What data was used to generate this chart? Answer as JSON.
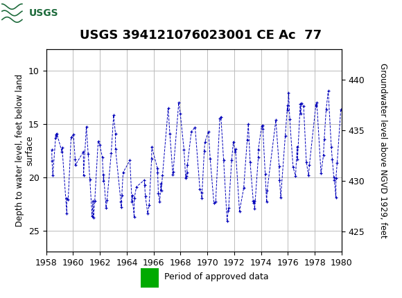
{
  "title": "USGS 394121076023001 CE Ac  77",
  "legend_label": "Period of approved data",
  "ylabel_left": "Depth to water level, feet below land\nsurface",
  "ylabel_right": "Groundwater level above NGVD 1929, feet",
  "xlim": [
    1958,
    1980
  ],
  "ylim_left": [
    27,
    8
  ],
  "ylim_right": [
    423,
    443
  ],
  "yticks_left": [
    10,
    15,
    20,
    25
  ],
  "yticks_right": [
    425,
    430,
    435,
    440
  ],
  "xticks": [
    1958,
    1960,
    1962,
    1964,
    1966,
    1968,
    1970,
    1972,
    1974,
    1976,
    1978,
    1980
  ],
  "line_color": "#0000bb",
  "marker": "+",
  "linestyle": "--",
  "grid_color": "#bbbbbb",
  "background_color": "#ffffff",
  "header_bg": "#1e6b3c",
  "green_bar_color": "#00aa00",
  "title_fontsize": 13,
  "axis_label_fontsize": 8.5,
  "tick_fontsize": 9,
  "figsize": [
    5.8,
    4.3
  ],
  "dpi": 100
}
